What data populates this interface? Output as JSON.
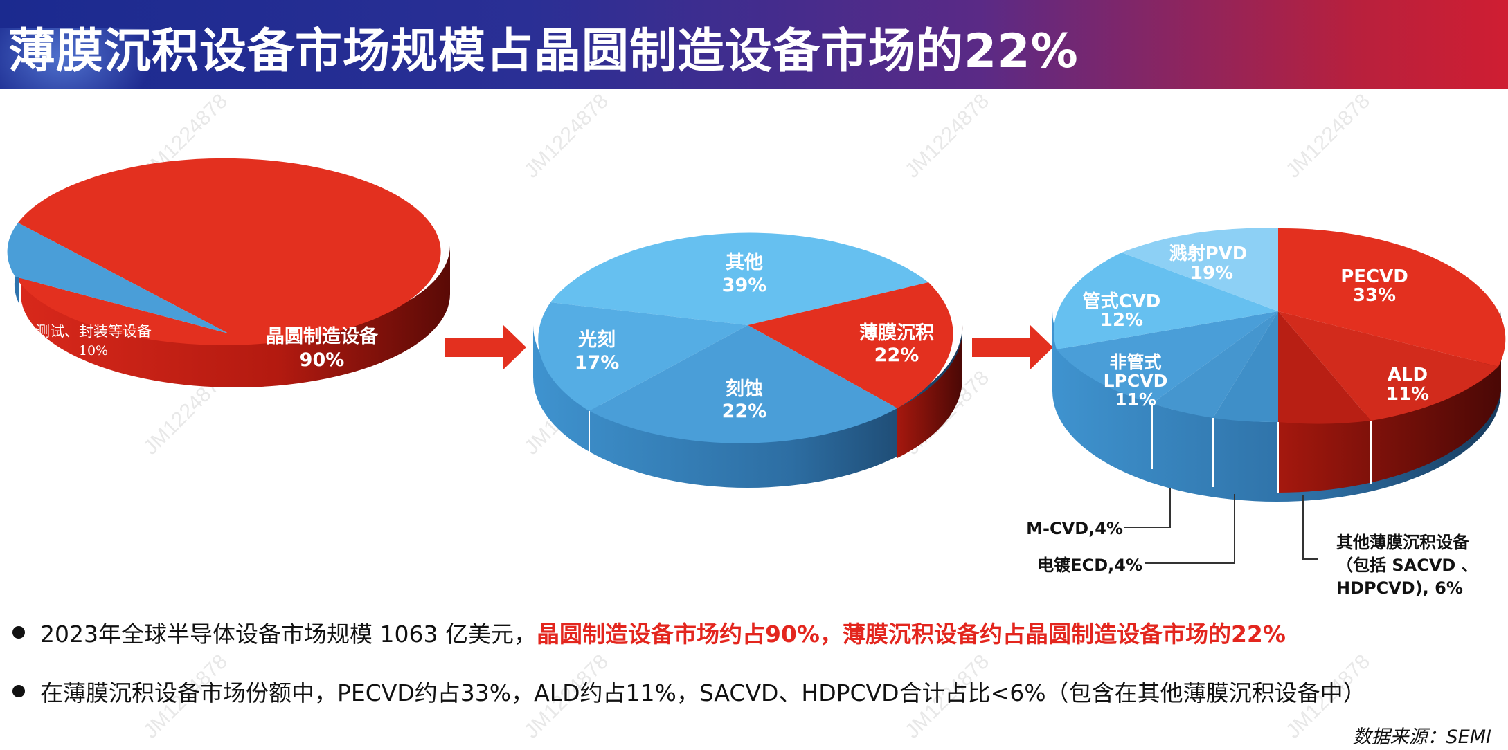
{
  "title": "薄膜沉积设备市场规模占晶圆制造设备市场的22%",
  "watermark_text": "JM1224878",
  "colors": {
    "red": "#e3301f",
    "dark_red": "#c01f14",
    "blue_mid": "#4a9ed8",
    "blue_light": "#66c0f0",
    "blue_pale": "#8dd0f5",
    "arrow": "#e3301f"
  },
  "chart_data": [
    {
      "type": "pie",
      "slices": [
        {
          "label": "晶圆制造设备",
          "value_label": "90%",
          "value": 90
        },
        {
          "label": "测试、封装等设备",
          "value_label": "10%",
          "value": 10
        }
      ]
    },
    {
      "type": "pie",
      "slices": [
        {
          "label": "其他",
          "value_label": "39%",
          "value": 39
        },
        {
          "label": "薄膜沉积",
          "value_label": "22%",
          "value": 22
        },
        {
          "label": "刻蚀",
          "value_label": "22%",
          "value": 22
        },
        {
          "label": "光刻",
          "value_label": "17%",
          "value": 17
        }
      ]
    },
    {
      "type": "pie",
      "slices": [
        {
          "label": "PECVD",
          "value_label": "33%",
          "value": 33
        },
        {
          "label": "ALD",
          "value_label": "11%",
          "value": 11
        },
        {
          "label": "其他薄膜沉积设备（包括 SACVD 、HDPCVD), 6%",
          "value": 6
        },
        {
          "label": "电镀ECD,4%",
          "value": 4
        },
        {
          "label": "M-CVD,4%",
          "value": 4
        },
        {
          "label": "非管式LPCVD",
          "value_label": "11%",
          "value": 11
        },
        {
          "label": "管式CVD",
          "value_label": "12%",
          "value": 12
        },
        {
          "label": "溅射PVD",
          "value_label": "19%",
          "value": 19
        }
      ]
    }
  ],
  "callouts": {
    "mcvd": "M-CVD,4%",
    "ecd": "电镀ECD,4%",
    "other_line1": "其他薄膜沉积设备",
    "other_line2": "（包括 SACVD 、",
    "other_line3": "HDPCVD), 6%"
  },
  "bullets": [
    {
      "plain": "2023年全球半导体设备市场规模 1063 亿美元，",
      "highlight": "晶圆制造设备市场约占90%，薄膜沉积设备约占晶圆制造设备市场的22%"
    },
    {
      "plain": "在薄膜沉积设备市场份额中，PECVD约占33%，ALD约占11%，SACVD、HDPCVD合计占比<6%（包含在其他薄膜沉积设备中）",
      "highlight": ""
    }
  ],
  "source": "数据来源：SEMI"
}
